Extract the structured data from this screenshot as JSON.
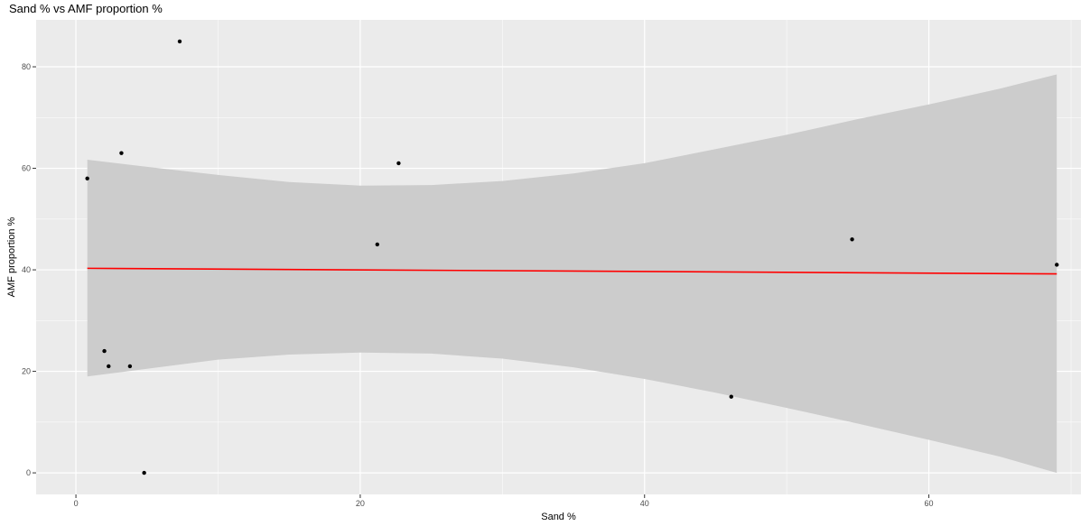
{
  "chart_data": {
    "type": "scatter",
    "title": "Sand % vs AMF proportion %",
    "xlabel": "Sand %",
    "ylabel": "AMF proportion %",
    "xlim": [
      -2.8,
      70.7
    ],
    "ylim": [
      -4.25,
      89.25
    ],
    "x_ticks": [
      0,
      20,
      40,
      60
    ],
    "y_ticks": [
      0,
      20,
      40,
      60,
      80
    ],
    "grid": true,
    "points": [
      {
        "x": 0.8,
        "y": 58
      },
      {
        "x": 2.0,
        "y": 24
      },
      {
        "x": 2.3,
        "y": 21
      },
      {
        "x": 3.2,
        "y": 63
      },
      {
        "x": 3.8,
        "y": 21
      },
      {
        "x": 4.8,
        "y": 0
      },
      {
        "x": 7.3,
        "y": 85
      },
      {
        "x": 21.2,
        "y": 45
      },
      {
        "x": 22.7,
        "y": 61
      },
      {
        "x": 46.1,
        "y": 15
      },
      {
        "x": 54.6,
        "y": 46
      },
      {
        "x": 69.0,
        "y": 41
      }
    ],
    "fit_line": {
      "x": [
        0.8,
        69.0
      ],
      "y": [
        40.3,
        39.2
      ],
      "color": "#ff0000"
    },
    "confidence_band": {
      "x": [
        0.8,
        5,
        10,
        15,
        20,
        25,
        30,
        35,
        40,
        45,
        50,
        55,
        60,
        65,
        69
      ],
      "upper": [
        61.7,
        60.3,
        58.7,
        57.3,
        56.6,
        56.7,
        57.5,
        59.0,
        61.0,
        63.8,
        66.6,
        69.7,
        72.6,
        75.7,
        78.5
      ],
      "lower": [
        19.0,
        20.5,
        22.3,
        23.3,
        23.7,
        23.5,
        22.5,
        20.8,
        18.5,
        15.8,
        12.8,
        9.7,
        6.5,
        3.2,
        0.0
      ],
      "color": "#cccccc"
    },
    "colors": {
      "panel": "#ebebeb",
      "grid_major": "#ffffff",
      "point": "#000000"
    }
  }
}
